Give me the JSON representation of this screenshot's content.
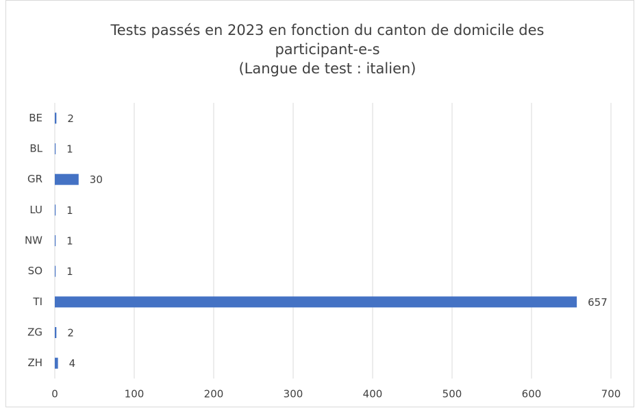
{
  "chart_data": {
    "type": "hbar",
    "title": [
      "Tests passés en 2023 en fonction du canton de domicile des",
      "participant-e-s",
      "(Langue de test : italien)"
    ],
    "categories": [
      "BE",
      "BL",
      "GR",
      "LU",
      "NW",
      "SO",
      "TI",
      "ZG",
      "ZH"
    ],
    "values": [
      2,
      1,
      30,
      1,
      1,
      1,
      657,
      2,
      4
    ],
    "color": "#4472c4",
    "xlim": [
      0,
      700
    ],
    "xticks": [
      0,
      100,
      200,
      300,
      400,
      500,
      600,
      700
    ],
    "grid": true
  }
}
